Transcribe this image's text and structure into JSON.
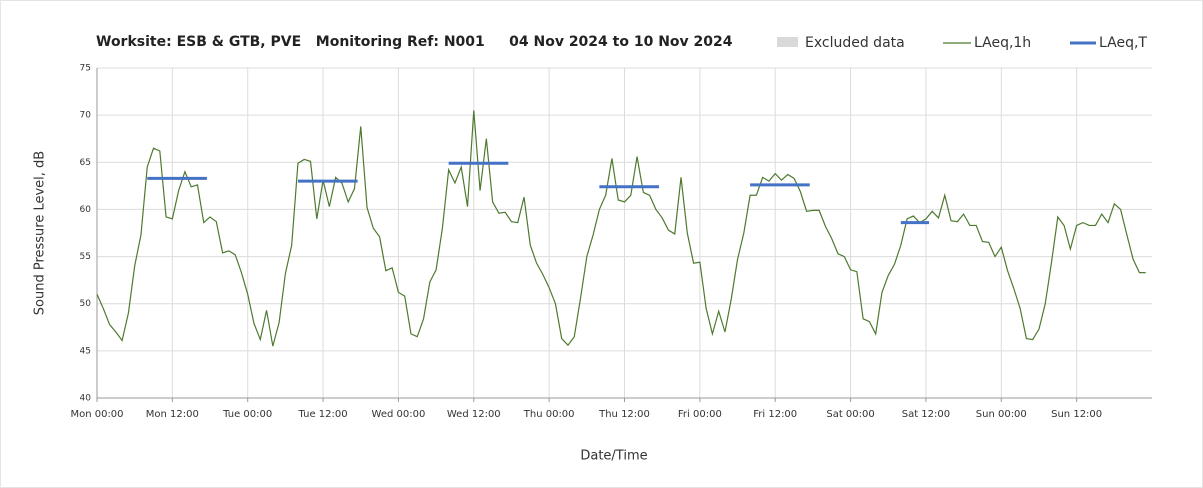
{
  "chart_data": {
    "type": "line",
    "title": "Worksite: ESB & GTB, PVE   Monitoring Ref: N001     04 Nov 2024 to 10 Nov 2024",
    "xlabel": "Date/Time",
    "ylabel": "Sound Pressure Level, dB",
    "xlim": [
      0,
      168
    ],
    "ylim": [
      40,
      75
    ],
    "xticks": [
      {
        "value": 0,
        "label": "Mon 00:00"
      },
      {
        "value": 12,
        "label": "Mon 12:00"
      },
      {
        "value": 24,
        "label": "Tue 00:00"
      },
      {
        "value": 36,
        "label": "Tue 12:00"
      },
      {
        "value": 48,
        "label": "Wed 00:00"
      },
      {
        "value": 60,
        "label": "Wed 12:00"
      },
      {
        "value": 72,
        "label": "Thu 00:00"
      },
      {
        "value": 84,
        "label": "Thu 12:00"
      },
      {
        "value": 96,
        "label": "Fri 00:00"
      },
      {
        "value": 108,
        "label": "Fri 12:00"
      },
      {
        "value": 120,
        "label": "Sat 00:00"
      },
      {
        "value": 132,
        "label": "Sat 12:00"
      },
      {
        "value": 144,
        "label": "Sun 00:00"
      },
      {
        "value": 156,
        "label": "Sun 12:00"
      }
    ],
    "yticks": [
      40,
      45,
      50,
      55,
      60,
      65,
      70,
      75
    ],
    "grid": true,
    "excluded_data": {
      "name": "Excluded data",
      "color": "#d9d9d9"
    },
    "series": [
      {
        "name": "LAeq,1h",
        "color": "#4e7a2f",
        "x": [
          0,
          1,
          2,
          3,
          4,
          5,
          6,
          7,
          8,
          9,
          10,
          11,
          12,
          13,
          14,
          15,
          16,
          17,
          18,
          19,
          20,
          21,
          22,
          23,
          24,
          25,
          26,
          27,
          28,
          29,
          30,
          31,
          32,
          33,
          34,
          35,
          36,
          37,
          38,
          39,
          40,
          41,
          42,
          43,
          44,
          45,
          46,
          47,
          48,
          49,
          50,
          51,
          52,
          53,
          54,
          55,
          56,
          57,
          58,
          59,
          60,
          61,
          62,
          63,
          64,
          65,
          66,
          67,
          68,
          69,
          70,
          71,
          72,
          73,
          74,
          75,
          76,
          77,
          78,
          79,
          80,
          81,
          82,
          83,
          84,
          85,
          86,
          87,
          88,
          89,
          90,
          91,
          92,
          93,
          94,
          95,
          96,
          97,
          98,
          99,
          100,
          101,
          102,
          103,
          104,
          105,
          106,
          107,
          108,
          109,
          110,
          111,
          112,
          113,
          114,
          115,
          116,
          117,
          118,
          119,
          120,
          121,
          122,
          123,
          124,
          125,
          126,
          127,
          128,
          129,
          130,
          131,
          132,
          133,
          134,
          135,
          136,
          137,
          138,
          139,
          140,
          141,
          142,
          143,
          144,
          145,
          146,
          147,
          148,
          149,
          150,
          151,
          152,
          153,
          154,
          155,
          156,
          157,
          158,
          159,
          160,
          161,
          162,
          163,
          164,
          165,
          166,
          167
        ],
        "values": [
          51,
          49.5,
          47.8,
          47,
          46.1,
          49,
          54,
          57.3,
          64.5,
          66.5,
          66.2,
          59.2,
          59,
          62,
          64,
          62.4,
          62.6,
          58.6,
          59.2,
          58.7,
          55.4,
          55.6,
          55.2,
          53.3,
          51,
          47.9,
          46.2,
          49.3,
          45.5,
          48,
          53.2,
          56.2,
          64.9,
          65.3,
          65.1,
          59,
          63.1,
          60.3,
          63.4,
          62.8,
          60.8,
          62.2,
          68.8,
          60.2,
          58,
          57.1,
          53.5,
          53.8,
          51.2,
          50.8,
          46.8,
          46.5,
          48.4,
          52.3,
          53.6,
          58,
          64.2,
          62.8,
          64.5,
          60.3,
          70.5,
          62,
          67.5,
          60.8,
          59.6,
          59.7,
          58.7,
          58.6,
          61.3,
          56.2,
          54.3,
          53.1,
          51.7,
          50,
          46.3,
          45.6,
          46.5,
          50.6,
          55,
          57.3,
          60,
          61.5,
          65.4,
          61,
          60.8,
          61.5,
          65.6,
          61.8,
          61.5,
          60,
          59.1,
          57.8,
          57.4,
          63.4,
          57.5,
          54.3,
          54.4,
          49.5,
          46.8,
          49.2,
          47,
          50.5,
          54.7,
          57.5,
          61.5,
          61.5,
          63.4,
          63,
          63.8,
          63.1,
          63.7,
          63.3,
          61.9,
          59.8,
          59.9,
          59.9,
          58.2,
          56.9,
          55.3,
          55,
          53.6,
          53.4,
          48.4,
          48.1,
          46.8,
          51.2,
          53,
          54.2,
          56.2,
          59,
          59.3,
          58.6,
          59,
          59.8,
          59.1,
          61.5,
          58.8,
          58.7,
          59.5,
          58.3,
          58.3,
          56.6,
          56.5,
          55,
          56,
          53.5,
          51.6,
          49.5,
          46.3,
          46.2,
          47.3,
          50,
          54.4,
          59.2,
          58.3,
          55.8,
          58.3,
          58.6,
          58.3,
          58.3,
          59.5,
          58.6,
          60.6,
          60,
          57.3,
          54.7,
          53.3,
          53.3
        ]
      },
      {
        "name": "LAeq,T",
        "color": "#4472c4",
        "x_start": [
          8,
          32,
          56,
          80,
          104,
          128
        ],
        "x_end": [
          17.5,
          41.5,
          65.5,
          89.5,
          113.5,
          132.5
        ],
        "values": [
          63.3,
          63.0,
          64.9,
          62.4,
          62.6,
          58.6
        ]
      }
    ]
  }
}
